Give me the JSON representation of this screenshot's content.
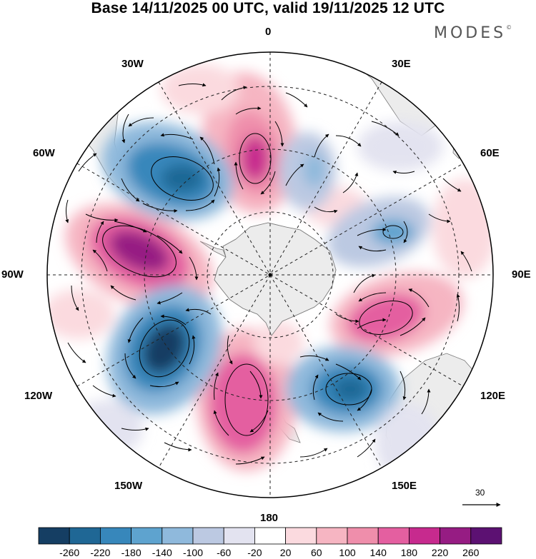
{
  "title": "Base 14/11/2025 00 UTC, valid 19/11/2025 12 UTC",
  "logo": {
    "text": "MODES",
    "mark": "©"
  },
  "longitude_labels": {
    "lon_0": "0",
    "lon_30e": "30E",
    "lon_60e": "60E",
    "lon_90e": "90E",
    "lon_120e": "120E",
    "lon_150e": "150E",
    "lon_180": "180",
    "lon_150w": "150W",
    "lon_120w": "120W",
    "lon_90w": "90W",
    "lon_60w": "60W",
    "lon_30w": "30W"
  },
  "vector_scale": {
    "label": "30"
  },
  "colorbar": {
    "colors": [
      "#153e63",
      "#1f6795",
      "#3787bb",
      "#5ea3cf",
      "#8fb9dc",
      "#bcc9e2",
      "#e3e3f0",
      "#ffffff",
      "#fbdadf",
      "#f6b5c2",
      "#ef8eab",
      "#e45fa0",
      "#c72a8e",
      "#961c83",
      "#5c1172"
    ],
    "labels": [
      "-260",
      "-220",
      "-180",
      "-140",
      "-100",
      "-60",
      "-20",
      "20",
      "60",
      "100",
      "140",
      "180",
      "220",
      "260"
    ]
  },
  "colors": {
    "land": "#ececec",
    "coast": "#7a7a7a",
    "grid": "#222222"
  }
}
